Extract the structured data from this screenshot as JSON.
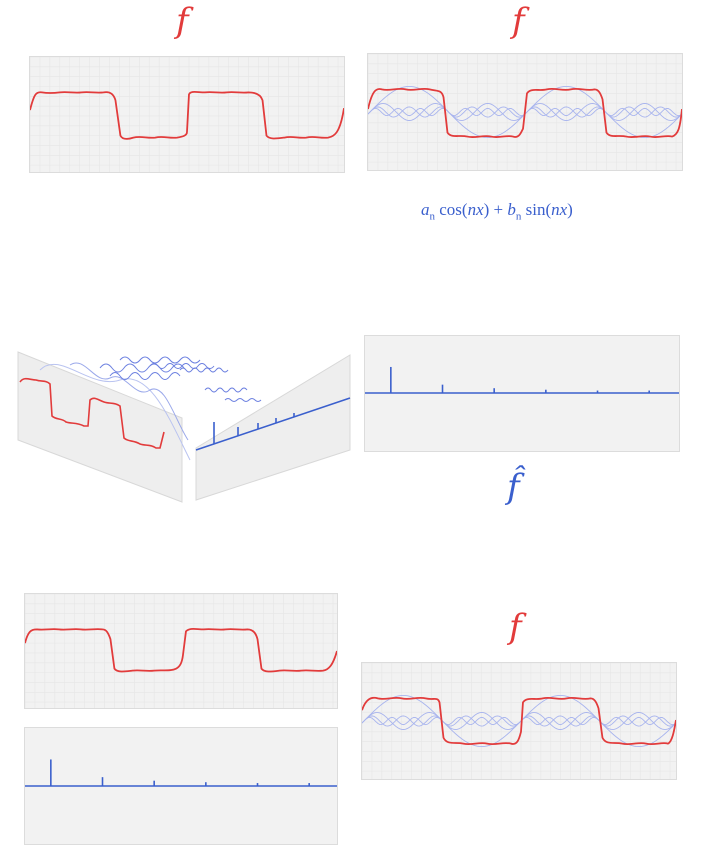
{
  "labels": {
    "f_top_left": "f",
    "f_top_right": "f",
    "fhat_mid": "f̂",
    "f_bottom_right": "f"
  },
  "formula": {
    "a": "a",
    "n1": "n",
    "cos": " cos(",
    "nx1": "nx",
    "plus": ") + ",
    "b": "b",
    "n2": "n",
    "sin": " sin(",
    "nx2": "nx",
    "close": ")"
  },
  "colors": {
    "signal": "#e23b3b",
    "component": "#a8b4ee",
    "spectrum": "#3a5fcd",
    "panel": "#f2f2f2",
    "grid": "#e6e6e6"
  }
}
